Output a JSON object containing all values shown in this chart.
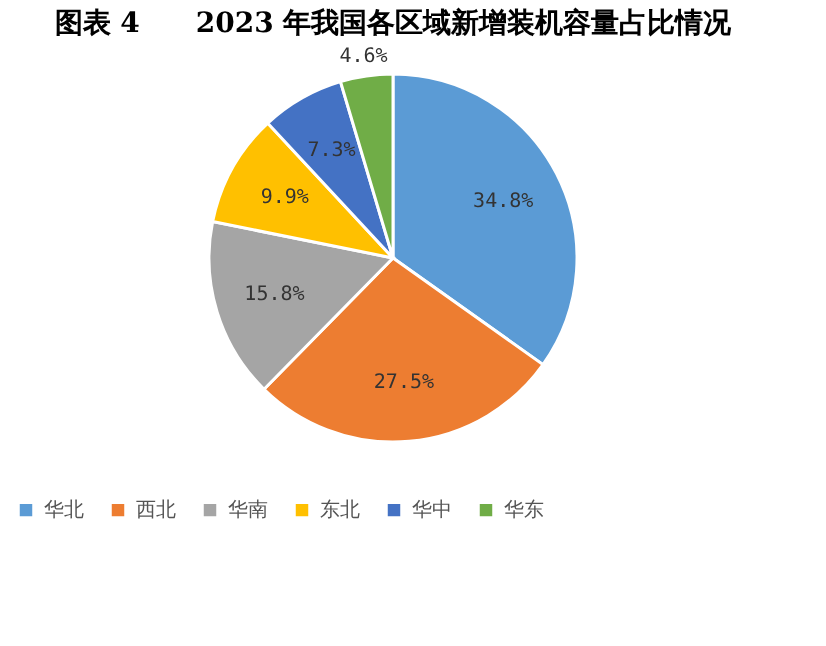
{
  "chart_data": {
    "type": "pie",
    "title": "图表 4　　2023 年我国各区域新增装机容量占比情况",
    "categories": [
      "华北",
      "西北",
      "华南",
      "东北",
      "华中",
      "华东"
    ],
    "values": [
      34.8,
      27.5,
      15.8,
      9.9,
      7.3,
      4.6
    ],
    "value_labels": [
      "34.8%",
      "27.5%",
      "15.8%",
      "9.9%",
      "7.3%",
      "4.6%"
    ],
    "colors": [
      "#5b9bd5",
      "#ed7d31",
      "#a5a5a5",
      "#ffc000",
      "#4472c4",
      "#70ad47"
    ],
    "legend": "bottom"
  }
}
